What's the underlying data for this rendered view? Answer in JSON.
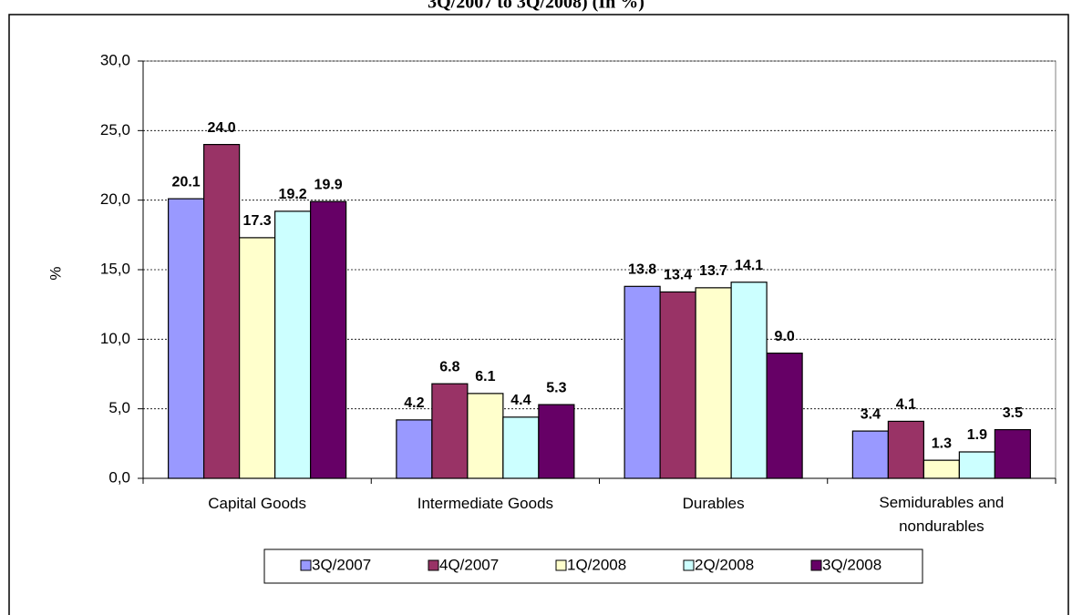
{
  "chart_data": {
    "type": "bar",
    "title": "3Q/2007 to 3Q/2008) (In %)",
    "y_label": "%",
    "categories": [
      "Capital Goods",
      "Intermediate Goods",
      "Durables",
      "Semidurables and nondurables"
    ],
    "series": [
      {
        "name": "3Q/2007",
        "color": "#9999ff",
        "values": [
          20.1,
          4.2,
          13.8,
          3.4
        ],
        "value_labels": [
          "20.1",
          "4.2",
          "13.8",
          "3.4"
        ]
      },
      {
        "name": "4Q/2007",
        "color": "#993366",
        "values": [
          24,
          6.8,
          13.4,
          4.1
        ],
        "value_labels": [
          "24.0",
          "6.8",
          "13.4",
          "4.1"
        ]
      },
      {
        "name": "1Q/2008",
        "color": "#ffffcc",
        "values": [
          17.3,
          6.1,
          13.7,
          1.3
        ],
        "value_labels": [
          "17.3",
          "6.1",
          "13.7",
          "1.3"
        ]
      },
      {
        "name": "2Q/2008",
        "color": "#ccffff",
        "values": [
          19.2,
          4.4,
          14.1,
          1.9
        ],
        "value_labels": [
          "19.2",
          "4.4",
          "14.1",
          "1.9"
        ]
      },
      {
        "name": "3Q/2008",
        "color": "#660066",
        "values": [
          19.9,
          5.3,
          9,
          3.5
        ],
        "value_labels": [
          "19.9",
          "5.3",
          "9.0",
          "3.5"
        ]
      }
    ],
    "ylim": [
      0,
      30
    ],
    "yticks": [
      {
        "value": 0,
        "label": "0,0"
      },
      {
        "value": 5,
        "label": "5,0"
      },
      {
        "value": 10,
        "label": "10,0"
      },
      {
        "value": 15,
        "label": "15,0"
      },
      {
        "value": 20,
        "label": "20,0"
      },
      {
        "value": 25,
        "label": "25,0"
      },
      {
        "value": 30,
        "label": "30,0"
      }
    ],
    "grid": true,
    "legend": "bottom"
  }
}
